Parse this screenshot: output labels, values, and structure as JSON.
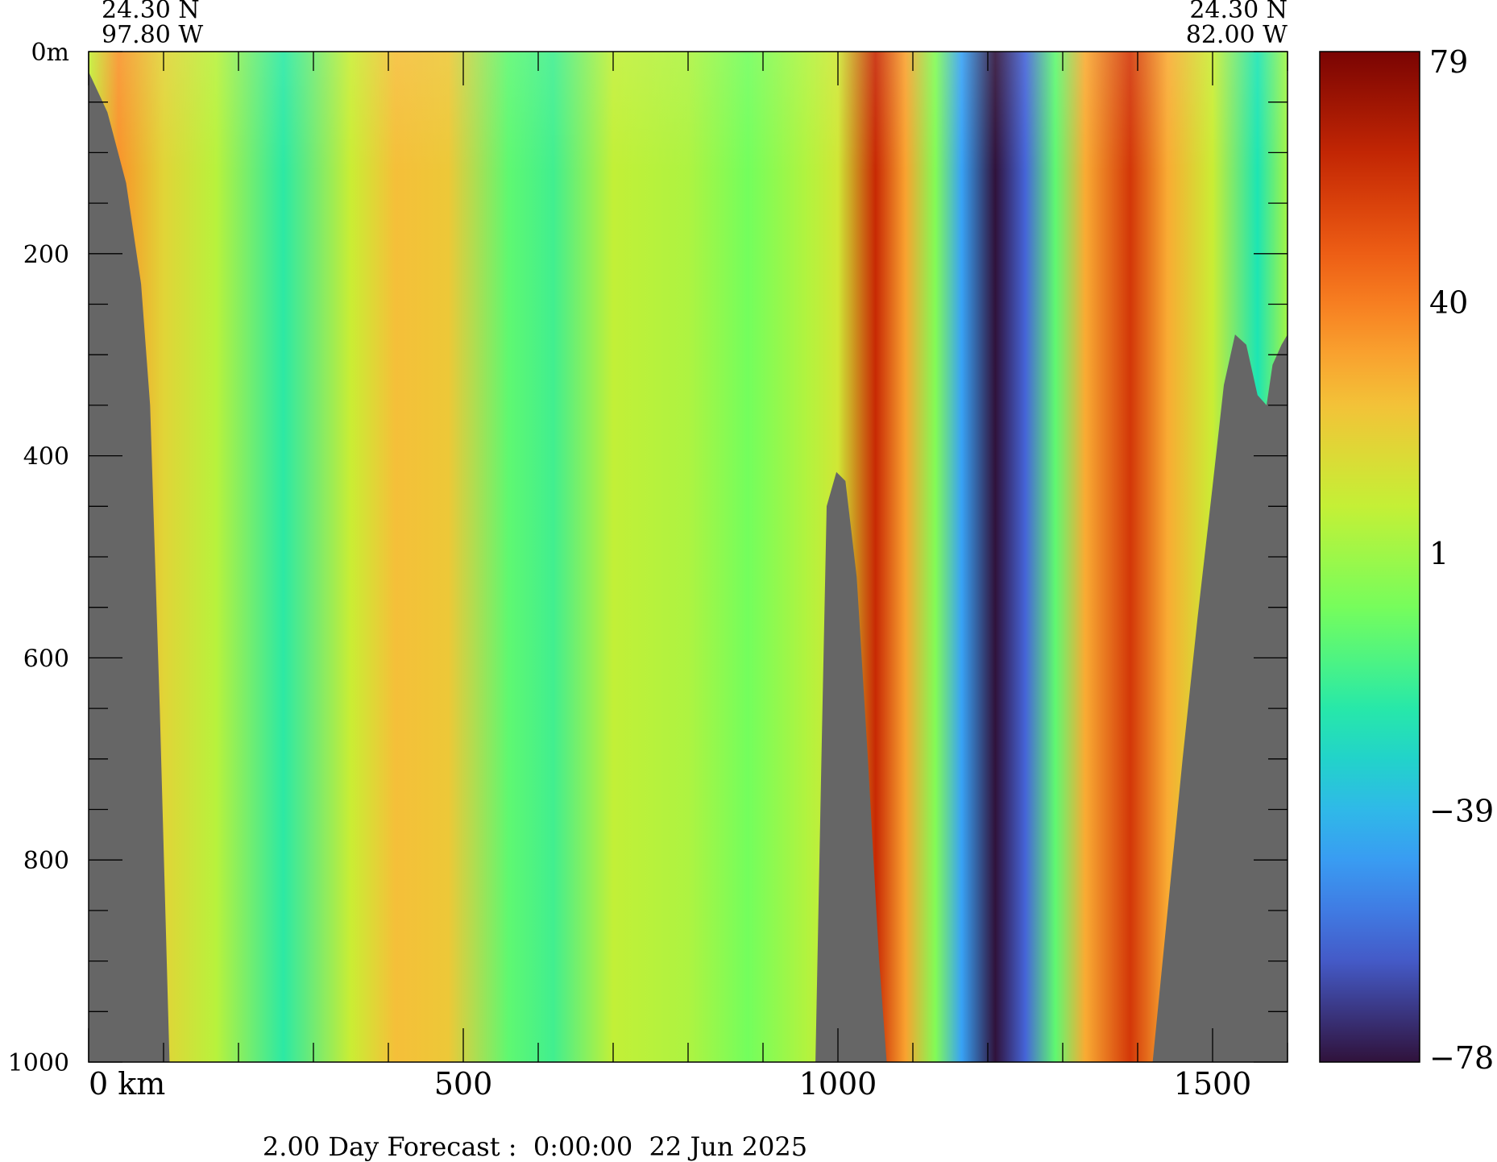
{
  "chart_data": {
    "type": "heatmap",
    "title": "",
    "corner_labels": {
      "left_lat": "24.30 N",
      "left_lon": "97.80 W",
      "right_lat": "24.30 N",
      "right_lon": "82.00 W"
    },
    "x_axis": {
      "range": [
        0,
        1600
      ],
      "major_ticks": [
        0,
        500,
        1000,
        1500
      ],
      "tick_labels": [
        "0 km",
        "500",
        "1000",
        "1500"
      ],
      "minor_step": 100
    },
    "y_axis": {
      "range": [
        0,
        1000
      ],
      "inverted": true,
      "major_ticks": [
        0,
        200,
        400,
        600,
        800,
        1000
      ],
      "tick_labels": [
        "0m",
        "200",
        "400",
        "600",
        "800",
        "1000"
      ],
      "minor_step": 50
    },
    "colorbar": {
      "range": [
        -78,
        79
      ],
      "tick_values": [
        79,
        40,
        1,
        -39,
        -78
      ],
      "tick_labels": [
        "79",
        "40",
        "1",
        "−39",
        "−78"
      ]
    },
    "footer": "2.00 Day Forecast :  0:00:00  22 Jun 2025",
    "colors": {
      "land": "#666666",
      "scale": [
        "#30123b",
        "#4662d7",
        "#36aaf9",
        "#1ae4b6",
        "#72fe5e",
        "#c8ef34",
        "#faba39",
        "#f66b19",
        "#ca2a04",
        "#7a0403"
      ]
    },
    "bands": [
      {
        "km": 0,
        "value": 8
      },
      {
        "km": 40,
        "value": 35
      },
      {
        "km": 100,
        "value": 18
      },
      {
        "km": 170,
        "value": 6
      },
      {
        "km": 260,
        "value": -22
      },
      {
        "km": 350,
        "value": 10
      },
      {
        "km": 410,
        "value": 25
      },
      {
        "km": 480,
        "value": 22
      },
      {
        "km": 560,
        "value": -12
      },
      {
        "km": 620,
        "value": -18
      },
      {
        "km": 700,
        "value": 8
      },
      {
        "km": 800,
        "value": 4
      },
      {
        "km": 880,
        "value": -8
      },
      {
        "km": 960,
        "value": 5
      },
      {
        "km": 1000,
        "value": 12
      },
      {
        "km": 1050,
        "value": 62
      },
      {
        "km": 1090,
        "value": 32
      },
      {
        "km": 1130,
        "value": -5
      },
      {
        "km": 1165,
        "value": -45
      },
      {
        "km": 1210,
        "value": -78
      },
      {
        "km": 1250,
        "value": -60
      },
      {
        "km": 1290,
        "value": -12
      },
      {
        "km": 1330,
        "value": 30
      },
      {
        "km": 1390,
        "value": 58
      },
      {
        "km": 1440,
        "value": 30
      },
      {
        "km": 1500,
        "value": 10
      },
      {
        "km": 1560,
        "value": -25
      },
      {
        "km": 1600,
        "value": 2
      }
    ],
    "land_left": [
      {
        "km": 0,
        "depth": 20
      },
      {
        "km": 25,
        "depth": 60
      },
      {
        "km": 50,
        "depth": 130
      },
      {
        "km": 70,
        "depth": 230
      },
      {
        "km": 82,
        "depth": 350
      },
      {
        "km": 95,
        "depth": 650
      },
      {
        "km": 108,
        "depth": 1000
      }
    ],
    "land_mid": [
      {
        "km": 970,
        "depth": 1000
      },
      {
        "km": 978,
        "depth": 700
      },
      {
        "km": 985,
        "depth": 450
      },
      {
        "km": 998,
        "depth": 416
      },
      {
        "km": 1010,
        "depth": 425
      },
      {
        "km": 1025,
        "depth": 520
      },
      {
        "km": 1040,
        "depth": 700
      },
      {
        "km": 1055,
        "depth": 900
      },
      {
        "km": 1065,
        "depth": 1000
      }
    ],
    "land_right": [
      {
        "km": 1420,
        "depth": 1000
      },
      {
        "km": 1440,
        "depth": 850
      },
      {
        "km": 1460,
        "depth": 700
      },
      {
        "km": 1480,
        "depth": 560
      },
      {
        "km": 1500,
        "depth": 430
      },
      {
        "km": 1515,
        "depth": 330
      },
      {
        "km": 1530,
        "depth": 280
      },
      {
        "km": 1545,
        "depth": 290
      },
      {
        "km": 1560,
        "depth": 340
      },
      {
        "km": 1572,
        "depth": 350
      },
      {
        "km": 1580,
        "depth": 310
      },
      {
        "km": 1592,
        "depth": 290
      },
      {
        "km": 1600,
        "depth": 280
      }
    ]
  }
}
